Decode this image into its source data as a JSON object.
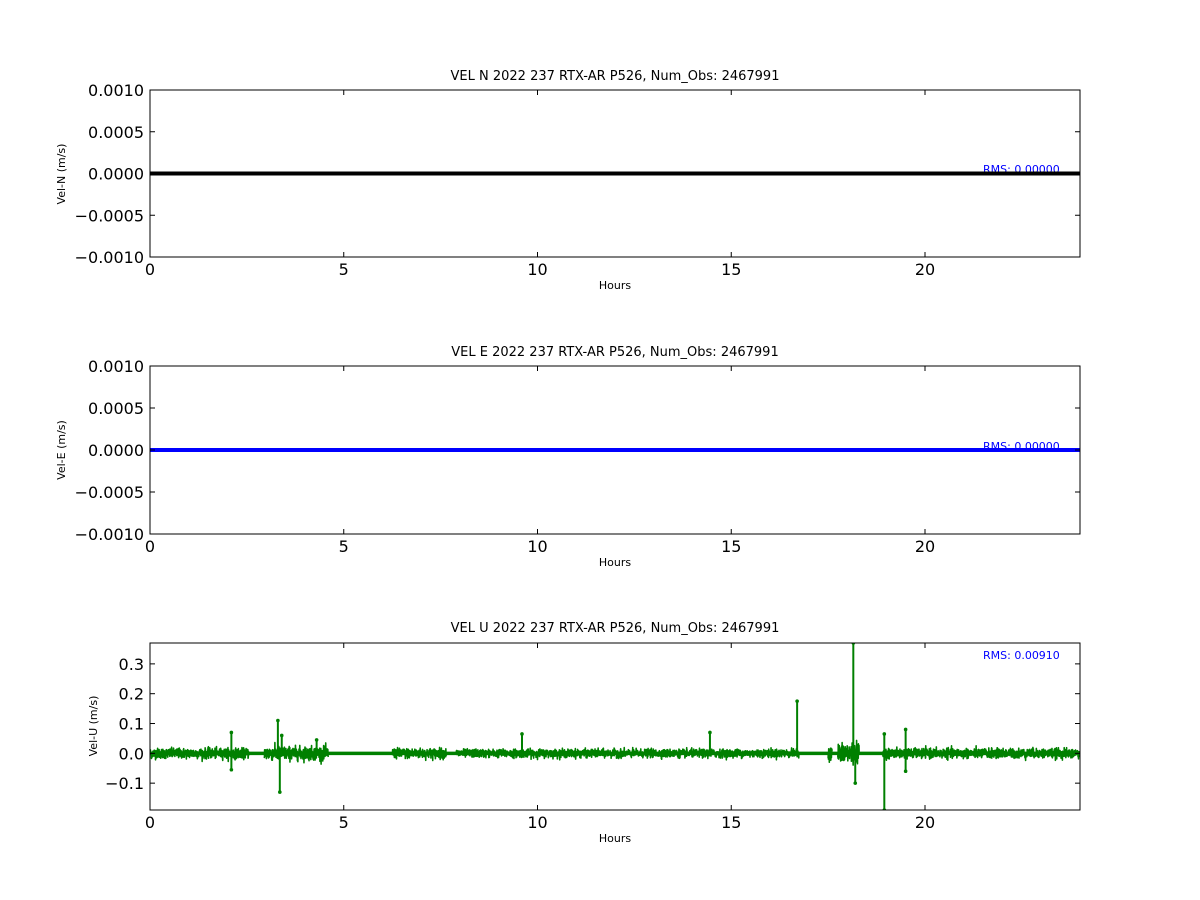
{
  "chart_data": [
    {
      "type": "line",
      "title": "VEL N 2022 237 RTX-AR  P526, Num_Obs: 2467991",
      "xlabel": "Hours",
      "ylabel": "Vel-N (m/s)",
      "xlim": [
        0,
        24
      ],
      "ylim": [
        -0.001,
        0.001
      ],
      "x_ticks": [
        0,
        5,
        10,
        15,
        20
      ],
      "x_tick_labels": [
        "0",
        "5",
        "10",
        "15",
        "20"
      ],
      "y_ticks": [
        0.001,
        0.0005,
        0.0,
        -0.0005,
        -0.001
      ],
      "y_tick_labels": [
        "0.0010",
        "0.0005",
        "0.0000",
        "−0.0005",
        "−0.0010"
      ],
      "rms_label": "RMS:  0.00000",
      "grid": false,
      "series": [
        {
          "color": "#000000",
          "x": [
            0,
            24
          ],
          "y": [
            0,
            0
          ]
        }
      ]
    },
    {
      "type": "line",
      "title": "VEL E 2022 237 RTX-AR  P526, Num_Obs: 2467991",
      "xlabel": "Hours",
      "ylabel": "Vel-E (m/s)",
      "xlim": [
        0,
        24
      ],
      "ylim": [
        -0.001,
        0.001
      ],
      "x_ticks": [
        0,
        5,
        10,
        15,
        20
      ],
      "x_tick_labels": [
        "0",
        "5",
        "10",
        "15",
        "20"
      ],
      "y_ticks": [
        0.001,
        0.0005,
        0.0,
        -0.0005,
        -0.001
      ],
      "y_tick_labels": [
        "0.0010",
        "0.0005",
        "0.0000",
        "−0.0005",
        "−0.0010"
      ],
      "rms_label": "RMS:  0.00000",
      "grid": false,
      "series": [
        {
          "color": "#0000ff",
          "x": [
            0,
            24
          ],
          "y": [
            0,
            0
          ]
        }
      ]
    },
    {
      "type": "line",
      "title": "VEL U 2022 237 RTX-AR  P526, Num_Obs: 2467991",
      "xlabel": "Hours",
      "ylabel": "Vel-U (m/s)",
      "xlim": [
        0,
        24
      ],
      "ylim": [
        -0.19,
        0.37
      ],
      "x_ticks": [
        0,
        5,
        10,
        15,
        20
      ],
      "x_tick_labels": [
        "0",
        "5",
        "10",
        "15",
        "20"
      ],
      "y_ticks": [
        0.3,
        0.2,
        0.1,
        0.0,
        -0.1
      ],
      "y_tick_labels": [
        "0.3",
        "0.2",
        "0.1",
        "0.0",
        "−0.1"
      ],
      "rms_label": "RMS:  0.00910",
      "grid": false,
      "series": [
        {
          "color": "#008000",
          "noise_segments": [
            {
              "x": [
                0.0,
                2.55
              ],
              "amp": 0.015
            },
            {
              "x": [
                2.95,
                4.6
              ],
              "amp": 0.02
            },
            {
              "x": [
                6.25,
                7.65
              ],
              "amp": 0.015
            },
            {
              "x": [
                7.9,
                16.75
              ],
              "amp": 0.012
            },
            {
              "x": [
                17.5,
                17.6
              ],
              "amp": 0.02
            },
            {
              "x": [
                17.75,
                18.3
              ],
              "amp": 0.03
            },
            {
              "x": [
                18.9,
                24.0
              ],
              "amp": 0.014
            }
          ],
          "baseline_x": [
            0,
            24
          ],
          "baseline_y": [
            0,
            0
          ],
          "spikes": [
            {
              "x": 2.1,
              "y": 0.07
            },
            {
              "x": 2.1,
              "y": -0.055
            },
            {
              "x": 3.3,
              "y": 0.11
            },
            {
              "x": 3.35,
              "y": -0.13
            },
            {
              "x": 3.4,
              "y": 0.06
            },
            {
              "x": 4.3,
              "y": 0.045
            },
            {
              "x": 9.6,
              "y": 0.065
            },
            {
              "x": 14.45,
              "y": 0.07
            },
            {
              "x": 16.7,
              "y": 0.175
            },
            {
              "x": 18.15,
              "y": 0.37
            },
            {
              "x": 18.2,
              "y": -0.1
            },
            {
              "x": 18.95,
              "y": 0.065
            },
            {
              "x": 18.95,
              "y": -0.19
            },
            {
              "x": 19.5,
              "y": 0.08
            },
            {
              "x": 19.5,
              "y": -0.06
            }
          ]
        }
      ]
    }
  ]
}
